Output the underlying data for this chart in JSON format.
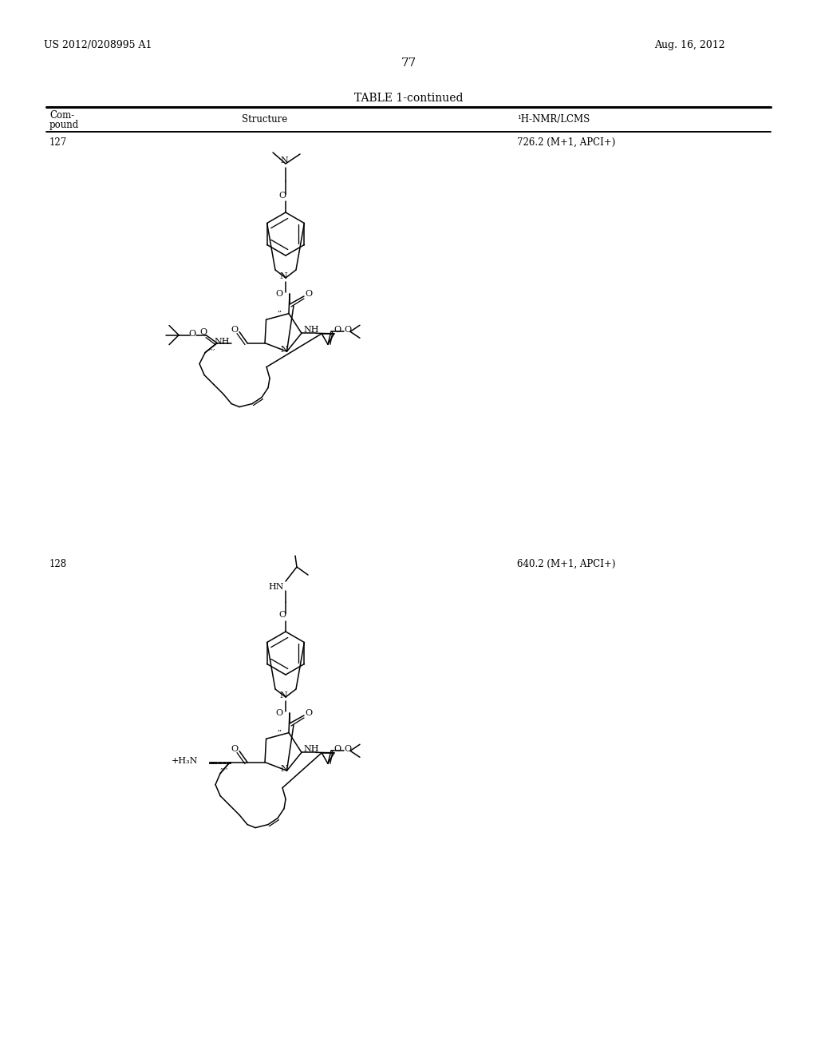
{
  "page_number": "77",
  "patent_number": "US 2012/0208995 A1",
  "patent_date": "Aug. 16, 2012",
  "table_title": "TABLE 1-continued",
  "col1_header_1": "Com-",
  "col1_header_2": "pound",
  "col2_header": "Structure",
  "col3_header": "¹H-NMR/LCMS",
  "compound_127": "127",
  "nmr_127": "726.2 (M+1, APCI+)",
  "compound_128": "128",
  "nmr_128": "640.2 (M+1, APCI+)",
  "bg_color": "#ffffff",
  "text_color": "#000000"
}
